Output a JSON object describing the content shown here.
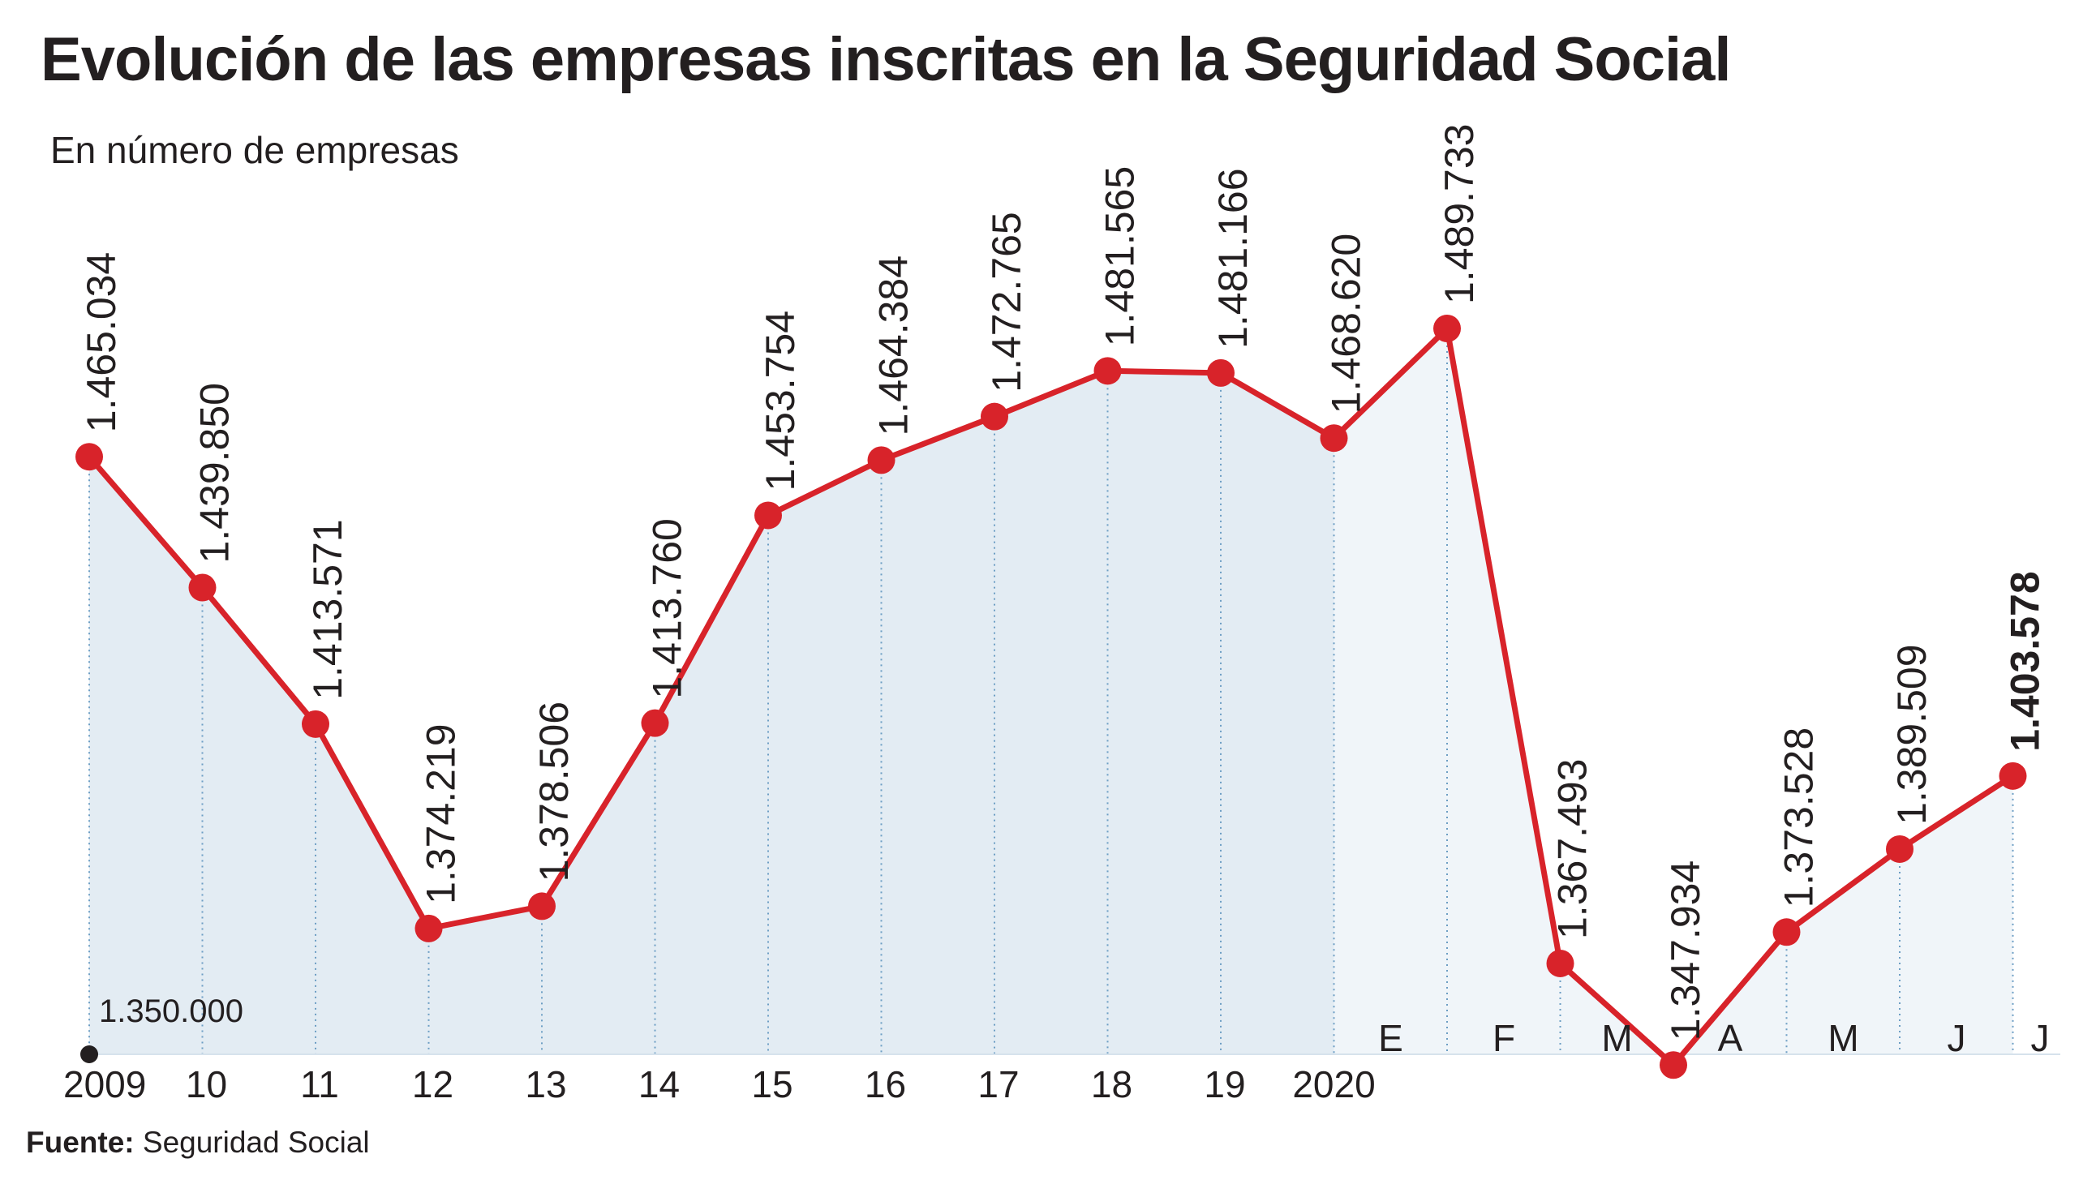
{
  "chart_data": {
    "type": "line",
    "title": "Evolución de las empresas inscritas en la Seguridad Social",
    "subtitle": "En número de empresas",
    "source_label": "Fuente:",
    "source_text": "Seguridad Social",
    "baseline_label": "1.350.000",
    "ylim": [
      1345000,
      1495000
    ],
    "grid": false,
    "fill_color_annual": "#e3ecf3",
    "fill_color_monthly": "#f0f5f9",
    "line_color": "#d8232a",
    "point_color": "#d8232a",
    "guide_color": "#6d9ec4",
    "categories": [
      "2009",
      "10",
      "11",
      "12",
      "13",
      "14",
      "15",
      "16",
      "17",
      "18",
      "19",
      "2020",
      "E",
      "F",
      "M",
      "A",
      "M",
      "J",
      "J"
    ],
    "period": [
      "annual",
      "annual",
      "annual",
      "annual",
      "annual",
      "annual",
      "annual",
      "annual",
      "annual",
      "annual",
      "annual",
      "monthly",
      "monthly",
      "monthly",
      "monthly",
      "monthly",
      "monthly",
      "monthly",
      "monthly"
    ],
    "points": [
      {
        "value": 1465034,
        "label": "1.465.034"
      },
      {
        "value": 1439850,
        "label": "1.439.850"
      },
      {
        "value": 1413571,
        "label": "1.413.571"
      },
      {
        "value": 1374219,
        "label": "1.374.219"
      },
      {
        "value": 1378506,
        "label": "1.378.506"
      },
      {
        "value": 1413760,
        "label": "1.413.760"
      },
      {
        "value": 1453754,
        "label": "1.453.754"
      },
      {
        "value": 1464384,
        "label": "1.464.384"
      },
      {
        "value": 1472765,
        "label": "1.472.765"
      },
      {
        "value": 1481565,
        "label": "1.481.565"
      },
      {
        "value": 1481166,
        "label": "1.481.166"
      },
      {
        "value": 1468620,
        "label": "1.468.620"
      },
      {
        "value": 1489733,
        "label": "1.489.733"
      },
      {
        "value": 1367493,
        "label": "1.367.493"
      },
      {
        "value": 1347934,
        "label": "1.347.934"
      },
      {
        "value": 1373528,
        "label": "1.373.528"
      },
      {
        "value": 1389509,
        "label": "1.389.509"
      },
      {
        "value": 1403578,
        "label": "1.403.578",
        "emphasis": true
      }
    ]
  }
}
